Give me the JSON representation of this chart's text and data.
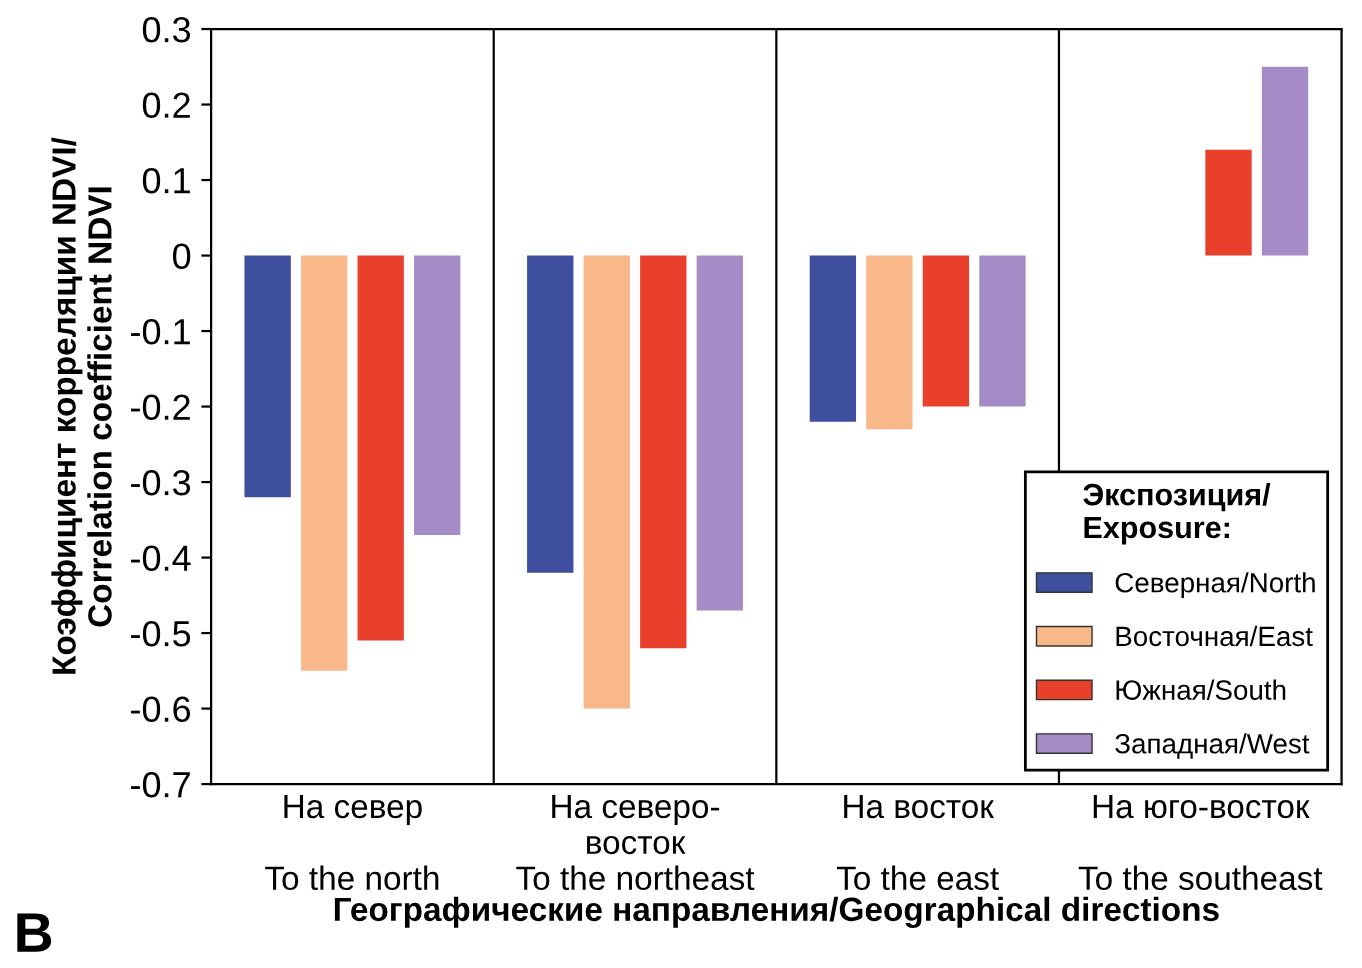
{
  "chart_data": {
    "type": "bar",
    "categories": [
      "На север\n\nTo the north",
      "На северо-\nвосток\nTo the northeast",
      "На восток\n\nTo the east",
      "На юго-восток\n\nTo the southeast"
    ],
    "series": [
      {
        "name": "Северная/North",
        "color": "#3f4fa0",
        "values": [
          -0.32,
          -0.42,
          -0.22,
          null
        ]
      },
      {
        "name": "Восточная/East",
        "color": "#f9b88a",
        "values": [
          -0.55,
          -0.6,
          -0.23,
          null
        ]
      },
      {
        "name": "Южная/South",
        "color": "#e8402a",
        "values": [
          -0.51,
          -0.52,
          -0.2,
          0.14
        ]
      },
      {
        "name": "Западная/West",
        "color": "#a58cc6",
        "values": [
          -0.37,
          -0.47,
          -0.2,
          0.25
        ]
      }
    ],
    "ylim": [
      -0.7,
      0.3
    ],
    "yticks": [
      -0.7,
      -0.6,
      -0.5,
      -0.4,
      -0.3,
      -0.2,
      -0.1,
      0,
      0.1,
      0.2,
      0.3
    ],
    "ylabel": "Коэффициент корреляции NDVI/\nCorrelation coefficient NDVI",
    "xlabel": "Географические направления/Geographical directions",
    "legend_title": "Экспозиция/\nExposure:",
    "legend": "bottom right",
    "grid": "x",
    "annotations": [
      "B"
    ]
  }
}
